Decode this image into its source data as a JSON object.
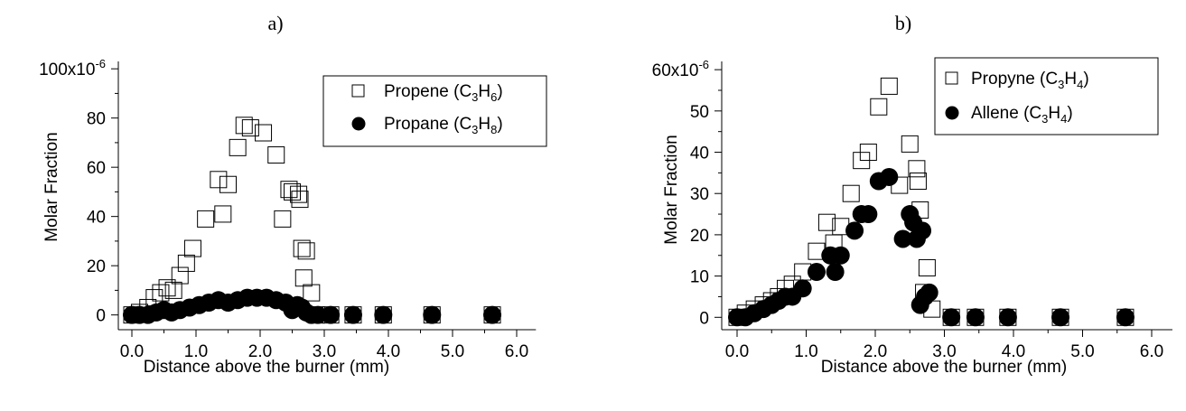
{
  "chart_data": [
    {
      "type": "scatter",
      "panel_label": "a)",
      "xlabel": "Distance above the burner (mm)",
      "ylabel": "Molar Fraction",
      "xlim": [
        -0.25,
        6.3
      ],
      "ylim": [
        -6,
        103
      ],
      "xticks": [
        0.0,
        1.0,
        2.0,
        3.0,
        4.0,
        5.0,
        6.0
      ],
      "xtick_labels": [
        "0.0",
        "1.0",
        "2.0",
        "3.0",
        "4.0",
        "5.0",
        "6.0"
      ],
      "yticks": [
        0,
        20,
        40,
        60,
        80,
        100
      ],
      "ytick_labels": [
        "0",
        "20",
        "40",
        "60",
        "80",
        "100x10"
      ],
      "ytick_top_exponent": "-6",
      "y_multiplier": "x10^-6",
      "legend_position": "top-right",
      "series": [
        {
          "name_parts": [
            "Propene (C",
            "3",
            "H",
            "6",
            ")"
          ],
          "marker": "open-square",
          "x": [
            0.0,
            0.12,
            0.25,
            0.35,
            0.45,
            0.55,
            0.65,
            0.75,
            0.85,
            0.95,
            1.15,
            1.35,
            1.42,
            1.5,
            1.65,
            1.75,
            1.85,
            2.05,
            2.25,
            2.35,
            2.45,
            2.5,
            2.6,
            2.62,
            2.65,
            2.68,
            2.72,
            2.8,
            2.88,
            3.1,
            3.45,
            3.92,
            4.68,
            5.62
          ],
          "y": [
            0,
            1,
            3,
            7,
            9,
            11,
            10,
            16,
            21,
            27,
            39,
            55,
            41,
            53,
            68,
            77,
            76,
            74,
            65,
            39,
            51,
            50,
            49,
            47,
            27,
            15,
            26,
            9,
            0,
            0,
            0,
            0,
            0,
            0
          ]
        },
        {
          "name_parts": [
            "Propane (C",
            "3",
            "H",
            "8",
            ")"
          ],
          "marker": "filled-circle",
          "x": [
            0.0,
            0.12,
            0.25,
            0.38,
            0.5,
            0.62,
            0.75,
            0.9,
            1.05,
            1.2,
            1.35,
            1.5,
            1.65,
            1.8,
            1.95,
            2.1,
            2.25,
            2.4,
            2.5,
            2.58,
            2.65,
            2.72,
            2.8,
            2.9,
            3.1,
            3.45,
            3.92,
            4.68,
            5.62
          ],
          "y": [
            0,
            0,
            0,
            1,
            2,
            1,
            2,
            3,
            4,
            5,
            6,
            5,
            6,
            7,
            7,
            7,
            6,
            5,
            2,
            4,
            3,
            1,
            0,
            0,
            0,
            0,
            0,
            0,
            0
          ]
        }
      ]
    },
    {
      "type": "scatter",
      "panel_label": "b)",
      "xlabel": "Distance above the burner (mm)",
      "ylabel": "Molar Fraction",
      "xlim": [
        -0.25,
        6.3
      ],
      "ylim": [
        -3,
        62
      ],
      "xticks": [
        0.0,
        1.0,
        2.0,
        3.0,
        4.0,
        5.0,
        6.0
      ],
      "xtick_labels": [
        "0.0",
        "1.0",
        "2.0",
        "3.0",
        "4.0",
        "5.0",
        "6.0"
      ],
      "yticks": [
        0,
        10,
        20,
        30,
        40,
        50,
        60
      ],
      "ytick_labels": [
        "0",
        "10",
        "20",
        "30",
        "40",
        "50",
        "60x10"
      ],
      "ytick_top_exponent": "-6",
      "y_multiplier": "x10^-6",
      "legend_position": "top-right",
      "series": [
        {
          "name_parts": [
            "Propyne (C",
            "3",
            "H",
            "4",
            ")"
          ],
          "marker": "open-square",
          "x": [
            0.0,
            0.12,
            0.25,
            0.38,
            0.5,
            0.6,
            0.7,
            0.8,
            0.95,
            1.15,
            1.3,
            1.4,
            1.5,
            1.65,
            1.8,
            1.9,
            2.05,
            2.2,
            2.35,
            2.5,
            2.6,
            2.62,
            2.65,
            2.7,
            2.75,
            2.82,
            3.1,
            3.45,
            3.92,
            4.68,
            5.62
          ],
          "y": [
            0,
            1,
            2,
            3,
            4,
            5,
            7,
            8,
            11,
            16,
            23,
            18,
            22,
            30,
            38,
            40,
            51,
            56,
            32,
            42,
            36,
            33,
            26,
            6,
            12,
            2,
            0,
            0,
            0,
            0,
            0
          ]
        },
        {
          "name_parts": [
            "Allene (C",
            "3",
            "H",
            "4",
            ")"
          ],
          "marker": "filled-circle",
          "x": [
            0.0,
            0.12,
            0.25,
            0.38,
            0.5,
            0.6,
            0.7,
            0.8,
            0.95,
            1.15,
            1.35,
            1.42,
            1.5,
            1.7,
            1.8,
            1.9,
            2.05,
            2.2,
            2.4,
            2.5,
            2.55,
            2.6,
            2.65,
            2.68,
            2.72,
            2.78,
            3.1,
            3.45,
            3.92,
            4.68,
            5.62
          ],
          "y": [
            0,
            0,
            1,
            2,
            3,
            4,
            5,
            5,
            7,
            11,
            15,
            11,
            15,
            21,
            25,
            25,
            33,
            34,
            19,
            25,
            23,
            19,
            3,
            21,
            5,
            6,
            0,
            0,
            0,
            0,
            0
          ]
        }
      ]
    }
  ]
}
